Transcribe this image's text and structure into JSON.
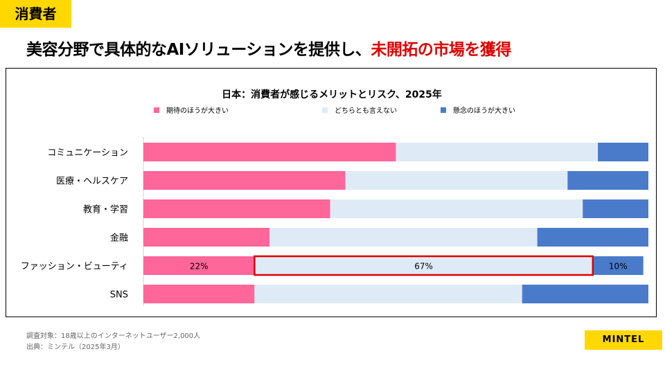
{
  "header": {
    "category": "消費者",
    "headline_main": "美容分野で具体的なAIソリューションを提供し、",
    "headline_highlight": "未開拓の市場を獲得"
  },
  "chart_data": {
    "type": "bar",
    "orientation": "horizontal",
    "stacked": true,
    "title": "日本：消費者が感じるメリットとリスク、2025年",
    "legend_position": "top",
    "categories": [
      "コミュニケーション",
      "医療・ヘルスケア",
      "教育・学習",
      "金融",
      "ファッション・ビューティ",
      "SNS"
    ],
    "series": [
      {
        "name": "期待のほうが大きい",
        "color": "#ff6699",
        "values": [
          50,
          40,
          37,
          25,
          22,
          22
        ]
      },
      {
        "name": "どちらとも言えない",
        "color": "#deebf7",
        "values": [
          40,
          44,
          50,
          53,
          67,
          53
        ]
      },
      {
        "name": "懸念のほうが大きい",
        "color": "#4a7bcb",
        "values": [
          10,
          16,
          13,
          22,
          10,
          25
        ]
      }
    ],
    "data_labels": [
      {
        "category": "ファッション・ビューティ",
        "values": [
          "22%",
          "67%",
          "10%"
        ]
      }
    ],
    "highlight": {
      "category": "ファッション・ビューティ",
      "series": "どちらとも言えない",
      "color": "#e00000"
    },
    "xlim": [
      0,
      100
    ]
  },
  "footer": {
    "note_sample": "調査対象：18歳以上のインターネットユーザー2,000人",
    "note_source": "出典：ミンテル（2025年3月）",
    "logo_text": "MINTEL"
  }
}
